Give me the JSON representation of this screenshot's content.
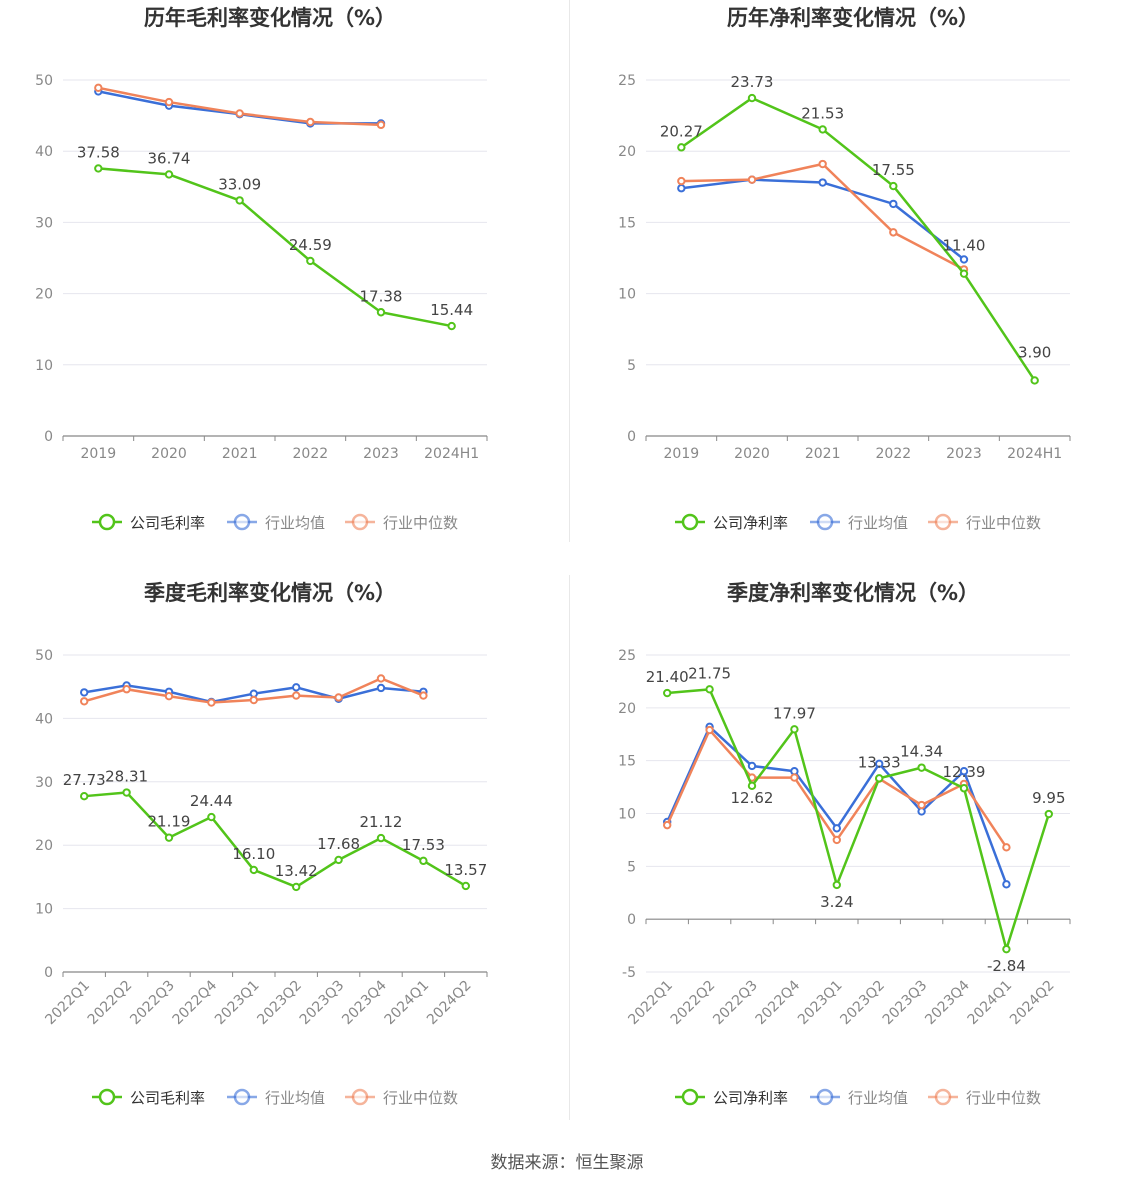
{
  "colors": {
    "company": "#52c41a",
    "avg": "#3a6fd8",
    "median": "#f0835a"
  },
  "legend": {
    "avg": "行业均值",
    "median": "行业中位数"
  },
  "footer": {
    "source": "数据来源：恒生聚源"
  },
  "chart_data": [
    {
      "type": "line",
      "title": "历年毛利率变化情况（%）",
      "x": [
        "2019",
        "2020",
        "2021",
        "2022",
        "2023",
        "2024H1"
      ],
      "ylim": [
        0,
        50
      ],
      "yticks": [
        0,
        10,
        20,
        30,
        40,
        50
      ],
      "rotate_x": false,
      "series": [
        {
          "name": "公司毛利率",
          "key": "company",
          "values": [
            37.58,
            36.74,
            33.09,
            24.59,
            17.38,
            15.44
          ],
          "labels": [
            "37.58",
            "36.74",
            "33.09",
            "24.59",
            "17.38",
            "15.44"
          ]
        },
        {
          "name": "行业均值",
          "key": "avg",
          "values": [
            48.4,
            46.4,
            45.2,
            43.9,
            43.9,
            null
          ]
        },
        {
          "name": "行业中位数",
          "key": "median",
          "values": [
            48.9,
            46.9,
            45.3,
            44.1,
            43.7,
            null
          ]
        }
      ]
    },
    {
      "type": "line",
      "title": "历年净利率变化情况（%）",
      "x": [
        "2019",
        "2020",
        "2021",
        "2022",
        "2023",
        "2024H1"
      ],
      "ylim": [
        0,
        25
      ],
      "yticks": [
        0,
        5,
        10,
        15,
        20,
        25
      ],
      "rotate_x": false,
      "series": [
        {
          "name": "公司净利率",
          "key": "company",
          "values": [
            20.27,
            23.73,
            21.53,
            17.55,
            11.4,
            3.9
          ],
          "labels": [
            "20.27",
            "23.73",
            "21.53",
            "17.55",
            "11.40",
            "3.90"
          ]
        },
        {
          "name": "行业均值",
          "key": "avg",
          "values": [
            17.4,
            18.0,
            17.8,
            16.3,
            12.4,
            null
          ]
        },
        {
          "name": "行业中位数",
          "key": "median",
          "values": [
            17.9,
            18.0,
            19.1,
            14.3,
            11.7,
            null
          ]
        }
      ]
    },
    {
      "type": "line",
      "title": "季度毛利率变化情况（%）",
      "x": [
        "2022Q1",
        "2022Q2",
        "2022Q3",
        "2022Q4",
        "2023Q1",
        "2023Q2",
        "2023Q3",
        "2023Q4",
        "2024Q1",
        "2024Q2"
      ],
      "ylim": [
        0,
        50
      ],
      "yticks": [
        0,
        10,
        20,
        30,
        40,
        50
      ],
      "rotate_x": true,
      "series": [
        {
          "name": "公司毛利率",
          "key": "company",
          "values": [
            27.73,
            28.31,
            21.19,
            24.44,
            16.1,
            13.42,
            17.68,
            21.12,
            17.53,
            13.57
          ],
          "labels": [
            "27.73",
            "28.31",
            "21.19",
            "24.44",
            "16.10",
            "13.42",
            "17.68",
            "21.12",
            "17.53",
            "13.57"
          ]
        },
        {
          "name": "行业均值",
          "key": "avg",
          "values": [
            44.1,
            45.2,
            44.2,
            42.6,
            43.9,
            44.9,
            43.1,
            44.8,
            44.2,
            null
          ]
        },
        {
          "name": "行业中位数",
          "key": "median",
          "values": [
            42.7,
            44.6,
            43.5,
            42.5,
            42.9,
            43.6,
            43.3,
            46.3,
            43.6,
            null
          ]
        }
      ]
    },
    {
      "type": "line",
      "title": "季度净利率变化情况（%）",
      "x": [
        "2022Q1",
        "2022Q2",
        "2022Q3",
        "2022Q4",
        "2023Q1",
        "2023Q2",
        "2023Q3",
        "2023Q4",
        "2024Q1",
        "2024Q2"
      ],
      "ylim": [
        -5,
        25
      ],
      "yticks": [
        -5,
        0,
        5,
        10,
        15,
        20,
        25
      ],
      "rotate_x": true,
      "series": [
        {
          "name": "公司净利率",
          "key": "company",
          "values": [
            21.4,
            21.75,
            12.62,
            17.97,
            3.24,
            13.33,
            14.34,
            12.39,
            -2.84,
            9.95
          ],
          "labels": [
            "21.40",
            "21.75",
            "12.62",
            "17.97",
            "3.24",
            "13.33",
            "14.34",
            "12.39",
            "-2.84",
            "9.95"
          ]
        },
        {
          "name": "行业均值",
          "key": "avg",
          "values": [
            9.2,
            18.2,
            14.5,
            14.0,
            8.6,
            14.7,
            10.2,
            14.0,
            3.3,
            null
          ]
        },
        {
          "name": "行业中位数",
          "key": "median",
          "values": [
            8.9,
            17.9,
            13.4,
            13.4,
            7.5,
            13.3,
            10.8,
            12.8,
            6.8,
            null
          ]
        }
      ]
    }
  ]
}
